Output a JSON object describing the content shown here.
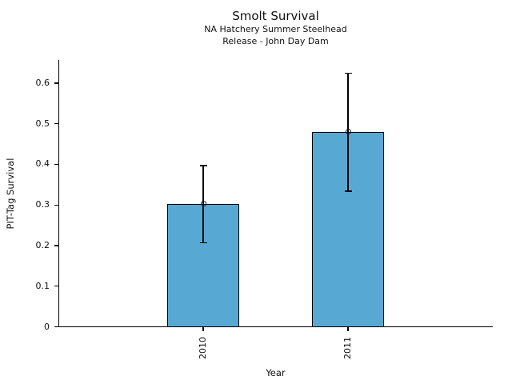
{
  "chart_data": {
    "type": "bar",
    "title": "Smolt Survival",
    "subtitle_line1": "NA Hatchery Summer Steelhead",
    "subtitle_line2": "Release - John Day Dam",
    "xlabel": "Year",
    "ylabel": "PIT-Tag Survival",
    "categories": [
      "2010",
      "2011"
    ],
    "values": [
      0.302,
      0.479
    ],
    "error_low": [
      0.207,
      0.334
    ],
    "error_high": [
      0.397,
      0.625
    ],
    "yticks": [
      0,
      0.1,
      0.2,
      0.3,
      0.4,
      0.5,
      0.6
    ],
    "ytick_labels": [
      "0",
      "0.1",
      "0.2",
      "0.3",
      "0.4",
      "0.5",
      "0.6"
    ],
    "ylim": [
      0,
      0.656
    ],
    "grid": false,
    "legend": null,
    "bar_color": "#57A9D4",
    "bar_edge_color": "#000000",
    "axis_color": "#000000"
  }
}
